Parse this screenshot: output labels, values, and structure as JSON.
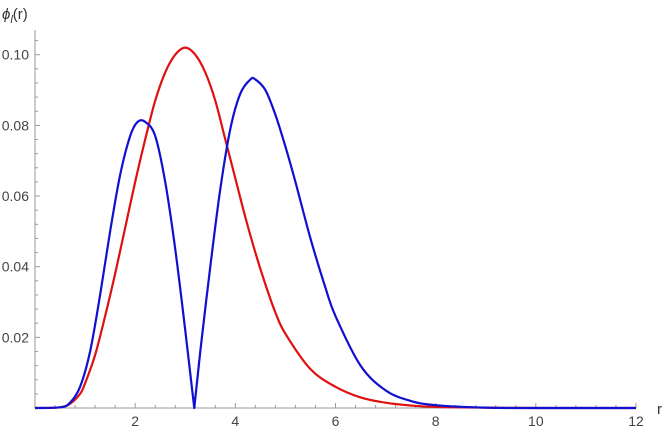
{
  "chart_data": {
    "type": "line",
    "title": "",
    "xlabel": "r",
    "ylabel_italic": "ϕ",
    "ylabel_sub": "l",
    "ylabel_arg": "(r)",
    "xlim": [
      0,
      12
    ],
    "ylim": [
      0,
      0.107
    ],
    "xticks": [
      2,
      4,
      6,
      8,
      10,
      12
    ],
    "yticks": [
      0.02,
      0.04,
      0.06,
      0.08,
      0.1
    ],
    "xtick_labels": [
      "2",
      "4",
      "6",
      "8",
      "10",
      "12"
    ],
    "ytick_labels": [
      "0.02",
      "0.04",
      "0.06",
      "0.08",
      "0.10"
    ],
    "grid": false,
    "legend": "none",
    "series": [
      {
        "color": "#e01010",
        "points": [
          [
            0,
            0
          ],
          [
            0.5,
            0.0002
          ],
          [
            0.7,
            0.0012
          ],
          [
            0.9,
            0.004
          ],
          [
            1.0,
            0.007
          ],
          [
            1.2,
            0.015
          ],
          [
            1.4,
            0.026
          ],
          [
            1.6,
            0.038
          ],
          [
            1.8,
            0.051
          ],
          [
            2.0,
            0.064
          ],
          [
            2.2,
            0.076
          ],
          [
            2.4,
            0.087
          ],
          [
            2.6,
            0.095
          ],
          [
            2.8,
            0.1
          ],
          [
            3.0,
            0.102
          ],
          [
            3.2,
            0.1
          ],
          [
            3.4,
            0.095
          ],
          [
            3.6,
            0.087
          ],
          [
            3.8,
            0.076
          ],
          [
            4.0,
            0.065
          ],
          [
            4.2,
            0.054
          ],
          [
            4.4,
            0.044
          ],
          [
            4.6,
            0.035
          ],
          [
            4.8,
            0.027
          ],
          [
            5.0,
            0.021
          ],
          [
            5.5,
            0.011
          ],
          [
            6.0,
            0.006
          ],
          [
            6.5,
            0.003
          ],
          [
            7.0,
            0.0015
          ],
          [
            7.5,
            0.0007
          ],
          [
            8.0,
            0.0003
          ],
          [
            9.0,
            0.0001
          ],
          [
            10.0,
            0
          ],
          [
            12.0,
            0
          ]
        ]
      },
      {
        "color": "#1010d0",
        "points": [
          [
            0,
            0
          ],
          [
            0.5,
            0.0002
          ],
          [
            0.7,
            0.0015
          ],
          [
            0.9,
            0.006
          ],
          [
            1.1,
            0.016
          ],
          [
            1.3,
            0.032
          ],
          [
            1.5,
            0.05
          ],
          [
            1.7,
            0.066
          ],
          [
            1.9,
            0.077
          ],
          [
            2.05,
            0.081
          ],
          [
            2.2,
            0.081
          ],
          [
            2.4,
            0.077
          ],
          [
            2.6,
            0.064
          ],
          [
            2.8,
            0.045
          ],
          [
            3.0,
            0.022
          ],
          [
            3.18,
            0
          ],
          [
            3.3,
            0.016
          ],
          [
            3.5,
            0.04
          ],
          [
            3.7,
            0.062
          ],
          [
            3.9,
            0.079
          ],
          [
            4.1,
            0.089
          ],
          [
            4.3,
            0.093
          ],
          [
            4.4,
            0.093
          ],
          [
            4.6,
            0.09
          ],
          [
            4.8,
            0.083
          ],
          [
            5.0,
            0.074
          ],
          [
            5.2,
            0.064
          ],
          [
            5.5,
            0.048
          ],
          [
            5.8,
            0.034
          ],
          [
            6.0,
            0.026
          ],
          [
            6.5,
            0.012
          ],
          [
            7.0,
            0.005
          ],
          [
            7.5,
            0.002
          ],
          [
            8.0,
            0.0008
          ],
          [
            9.0,
            0.0001
          ],
          [
            10.0,
            0
          ],
          [
            12.0,
            0
          ]
        ]
      }
    ]
  }
}
